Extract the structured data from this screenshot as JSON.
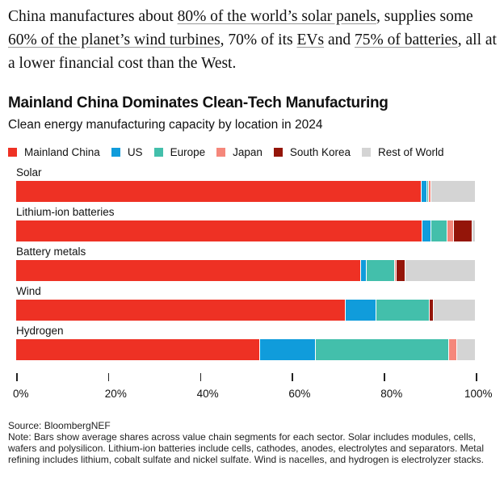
{
  "intro": {
    "parts": [
      "China manufactures about ",
      "80% of the world’s solar panels",
      ", supplies some ",
      "60% of the planet’s wind turbines",
      ", 70% of its ",
      "EVs",
      " and ",
      "75% of batteries",
      ", all at a lower financial cost than the West."
    ]
  },
  "chart_data": {
    "type": "bar",
    "orientation": "horizontal-stacked",
    "title": "Mainland China Dominates Clean-Tech Manufacturing",
    "subtitle": "Clean energy manufacturing capacity by location in 2024",
    "categories": [
      "Solar",
      "Lithium-ion batteries",
      "Battery metals",
      "Wind",
      "Hydrogen"
    ],
    "series": [
      {
        "name": "Mainland China",
        "color": "#ee3124",
        "values": [
          88.3,
          88.4,
          75.0,
          71.7,
          53.1
        ]
      },
      {
        "name": "US",
        "color": "#109cdb",
        "values": [
          1.2,
          2.0,
          1.3,
          6.6,
          12.1
        ]
      },
      {
        "name": "Europe",
        "color": "#43bfab",
        "values": [
          0.3,
          3.4,
          6.1,
          11.6,
          29.0
        ]
      },
      {
        "name": "Japan",
        "color": "#f5877b",
        "values": [
          0.5,
          1.5,
          0.4,
          0.0,
          1.8
        ]
      },
      {
        "name": "South Korea",
        "color": "#941509",
        "values": [
          0.1,
          4.0,
          1.9,
          1.0,
          0.0
        ]
      },
      {
        "name": "Rest of World",
        "color": "#d4d4d4",
        "values": [
          9.6,
          0.7,
          15.3,
          9.1,
          4.0
        ]
      }
    ],
    "xlim": [
      0,
      100
    ],
    "xticks": [
      "0%",
      "20%",
      "40%",
      "60%",
      "80%",
      "100%"
    ],
    "legend_position": "top",
    "grid": false
  },
  "source": "Source: BloombergNEF",
  "note": "Note: Bars show average shares across value chain segments for each sector. Solar includes modules, cells, wafers and polysilicon. Lithium-ion batteries include cells, cathodes, anodes, electrolytes and separators. Metal refining includes lithium, cobalt sulfate and nickel sulfate. Wind is nacelles, and hydrogen is electrolyzer stacks."
}
